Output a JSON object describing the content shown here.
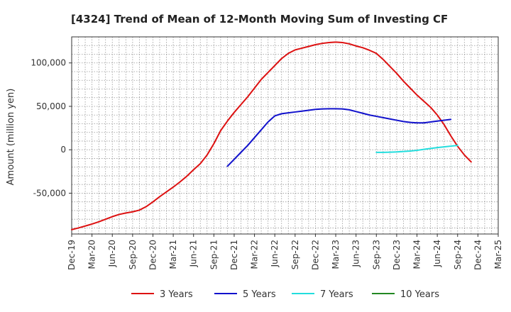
{
  "chart_data": {
    "type": "line",
    "title": "[4324]  Trend of Mean of 12-Month Moving Sum of Investing CF",
    "xlabel": "",
    "ylabel": "Amount (million yen)",
    "ylim": [
      -97000,
      130000
    ],
    "yticks": [
      100000,
      50000,
      0,
      -50000
    ],
    "ytick_labels": [
      "100,000",
      "50,000",
      "0",
      "-50,000"
    ],
    "x_start": "Dec-19",
    "x_end": "Mar-25",
    "xtick_labels": [
      "Dec-19",
      "Mar-20",
      "Jun-20",
      "Sep-20",
      "Dec-20",
      "Mar-21",
      "Jun-21",
      "Sep-21",
      "Dec-21",
      "Mar-22",
      "Jun-22",
      "Sep-22",
      "Dec-22",
      "Mar-23",
      "Jun-23",
      "Sep-23",
      "Dec-23",
      "Mar-24",
      "Jun-24",
      "Sep-24",
      "Dec-24",
      "Mar-25"
    ],
    "grid": true,
    "legend_position": "bottom",
    "series": [
      {
        "name": "3 Years",
        "color": "#dd1111",
        "points": [
          [
            "Dec-19",
            -92000
          ],
          [
            "Jan-20",
            -90000
          ],
          [
            "Feb-20",
            -87800
          ],
          [
            "Mar-20",
            -85500
          ],
          [
            "Apr-20",
            -83000
          ],
          [
            "May-20",
            -80000
          ],
          [
            "Jun-20",
            -77000
          ],
          [
            "Jul-20",
            -74500
          ],
          [
            "Aug-20",
            -72800
          ],
          [
            "Sep-20",
            -71500
          ],
          [
            "Oct-20",
            -69500
          ],
          [
            "Nov-20",
            -65500
          ],
          [
            "Dec-20",
            -60000
          ],
          [
            "Jan-21",
            -54000
          ],
          [
            "Feb-21",
            -48500
          ],
          [
            "Mar-21",
            -43000
          ],
          [
            "Apr-21",
            -37000
          ],
          [
            "May-21",
            -30500
          ],
          [
            "Jun-21",
            -23000
          ],
          [
            "Jul-21",
            -16000
          ],
          [
            "Aug-21",
            -6000
          ],
          [
            "Sep-21",
            7000
          ],
          [
            "Oct-21",
            22000
          ],
          [
            "Nov-21",
            33000
          ],
          [
            "Dec-21",
            43000
          ],
          [
            "Jan-22",
            52000
          ],
          [
            "Feb-22",
            61000
          ],
          [
            "Mar-22",
            71000
          ],
          [
            "Apr-22",
            81000
          ],
          [
            "May-22",
            89000
          ],
          [
            "Jun-22",
            97000
          ],
          [
            "Jul-22",
            105000
          ],
          [
            "Aug-22",
            111000
          ],
          [
            "Sep-22",
            115000
          ],
          [
            "Oct-22",
            117000
          ],
          [
            "Nov-22",
            119000
          ],
          [
            "Dec-22",
            121000
          ],
          [
            "Jan-23",
            122500
          ],
          [
            "Feb-23",
            123500
          ],
          [
            "Mar-23",
            124000
          ],
          [
            "Apr-23",
            123500
          ],
          [
            "May-23",
            122000
          ],
          [
            "Jun-23",
            119500
          ],
          [
            "Jul-23",
            117500
          ],
          [
            "Aug-23",
            114500
          ],
          [
            "Sep-23",
            111000
          ],
          [
            "Oct-23",
            104000
          ],
          [
            "Nov-23",
            96000
          ],
          [
            "Dec-23",
            88000
          ],
          [
            "Jan-24",
            79000
          ],
          [
            "Feb-24",
            71000
          ],
          [
            "Mar-24",
            63000
          ],
          [
            "Apr-24",
            56000
          ],
          [
            "May-24",
            49000
          ],
          [
            "Jun-24",
            40000
          ],
          [
            "Jul-24",
            29000
          ],
          [
            "Aug-24",
            16000
          ],
          [
            "Sep-24",
            4000
          ],
          [
            "Oct-24",
            -6000
          ],
          [
            "Nov-24",
            -14000
          ]
        ]
      },
      {
        "name": "5 Years",
        "color": "#1111cc",
        "points": [
          [
            "Nov-21",
            -19000
          ],
          [
            "Dec-21",
            -11000
          ],
          [
            "Jan-22",
            -3000
          ],
          [
            "Feb-22",
            5000
          ],
          [
            "Mar-22",
            14000
          ],
          [
            "Apr-22",
            23000
          ],
          [
            "May-22",
            32000
          ],
          [
            "Jun-22",
            39000
          ],
          [
            "Jul-22",
            41500
          ],
          [
            "Aug-22",
            42500
          ],
          [
            "Sep-22",
            43500
          ],
          [
            "Oct-22",
            44500
          ],
          [
            "Nov-22",
            45500
          ],
          [
            "Dec-22",
            46500
          ],
          [
            "Jan-23",
            47000
          ],
          [
            "Feb-23",
            47200
          ],
          [
            "Mar-23",
            47200
          ],
          [
            "Apr-23",
            47000
          ],
          [
            "May-23",
            46000
          ],
          [
            "Jun-23",
            44000
          ],
          [
            "Jul-23",
            42000
          ],
          [
            "Aug-23",
            40000
          ],
          [
            "Sep-23",
            38500
          ],
          [
            "Oct-23",
            37000
          ],
          [
            "Nov-23",
            35500
          ],
          [
            "Dec-23",
            34000
          ],
          [
            "Jan-24",
            32500
          ],
          [
            "Feb-24",
            31500
          ],
          [
            "Mar-24",
            31000
          ],
          [
            "Apr-24",
            31000
          ],
          [
            "May-24",
            32000
          ],
          [
            "Jun-24",
            33000
          ],
          [
            "Jul-24",
            34000
          ],
          [
            "Aug-24",
            35000
          ]
        ]
      },
      {
        "name": "7 Years",
        "color": "#22dddd",
        "points": [
          [
            "Sep-23",
            -3000
          ],
          [
            "Oct-23",
            -3000
          ],
          [
            "Nov-23",
            -2800
          ],
          [
            "Dec-23",
            -2500
          ],
          [
            "Jan-24",
            -2000
          ],
          [
            "Feb-24",
            -1500
          ],
          [
            "Mar-24",
            -700
          ],
          [
            "Apr-24",
            500
          ],
          [
            "May-24",
            1500
          ],
          [
            "Jun-24",
            2500
          ],
          [
            "Jul-24",
            3300
          ],
          [
            "Aug-24",
            4200
          ],
          [
            "Sep-24",
            5000
          ]
        ]
      },
      {
        "name": "10 Years",
        "color": "#228822",
        "points": []
      }
    ]
  }
}
